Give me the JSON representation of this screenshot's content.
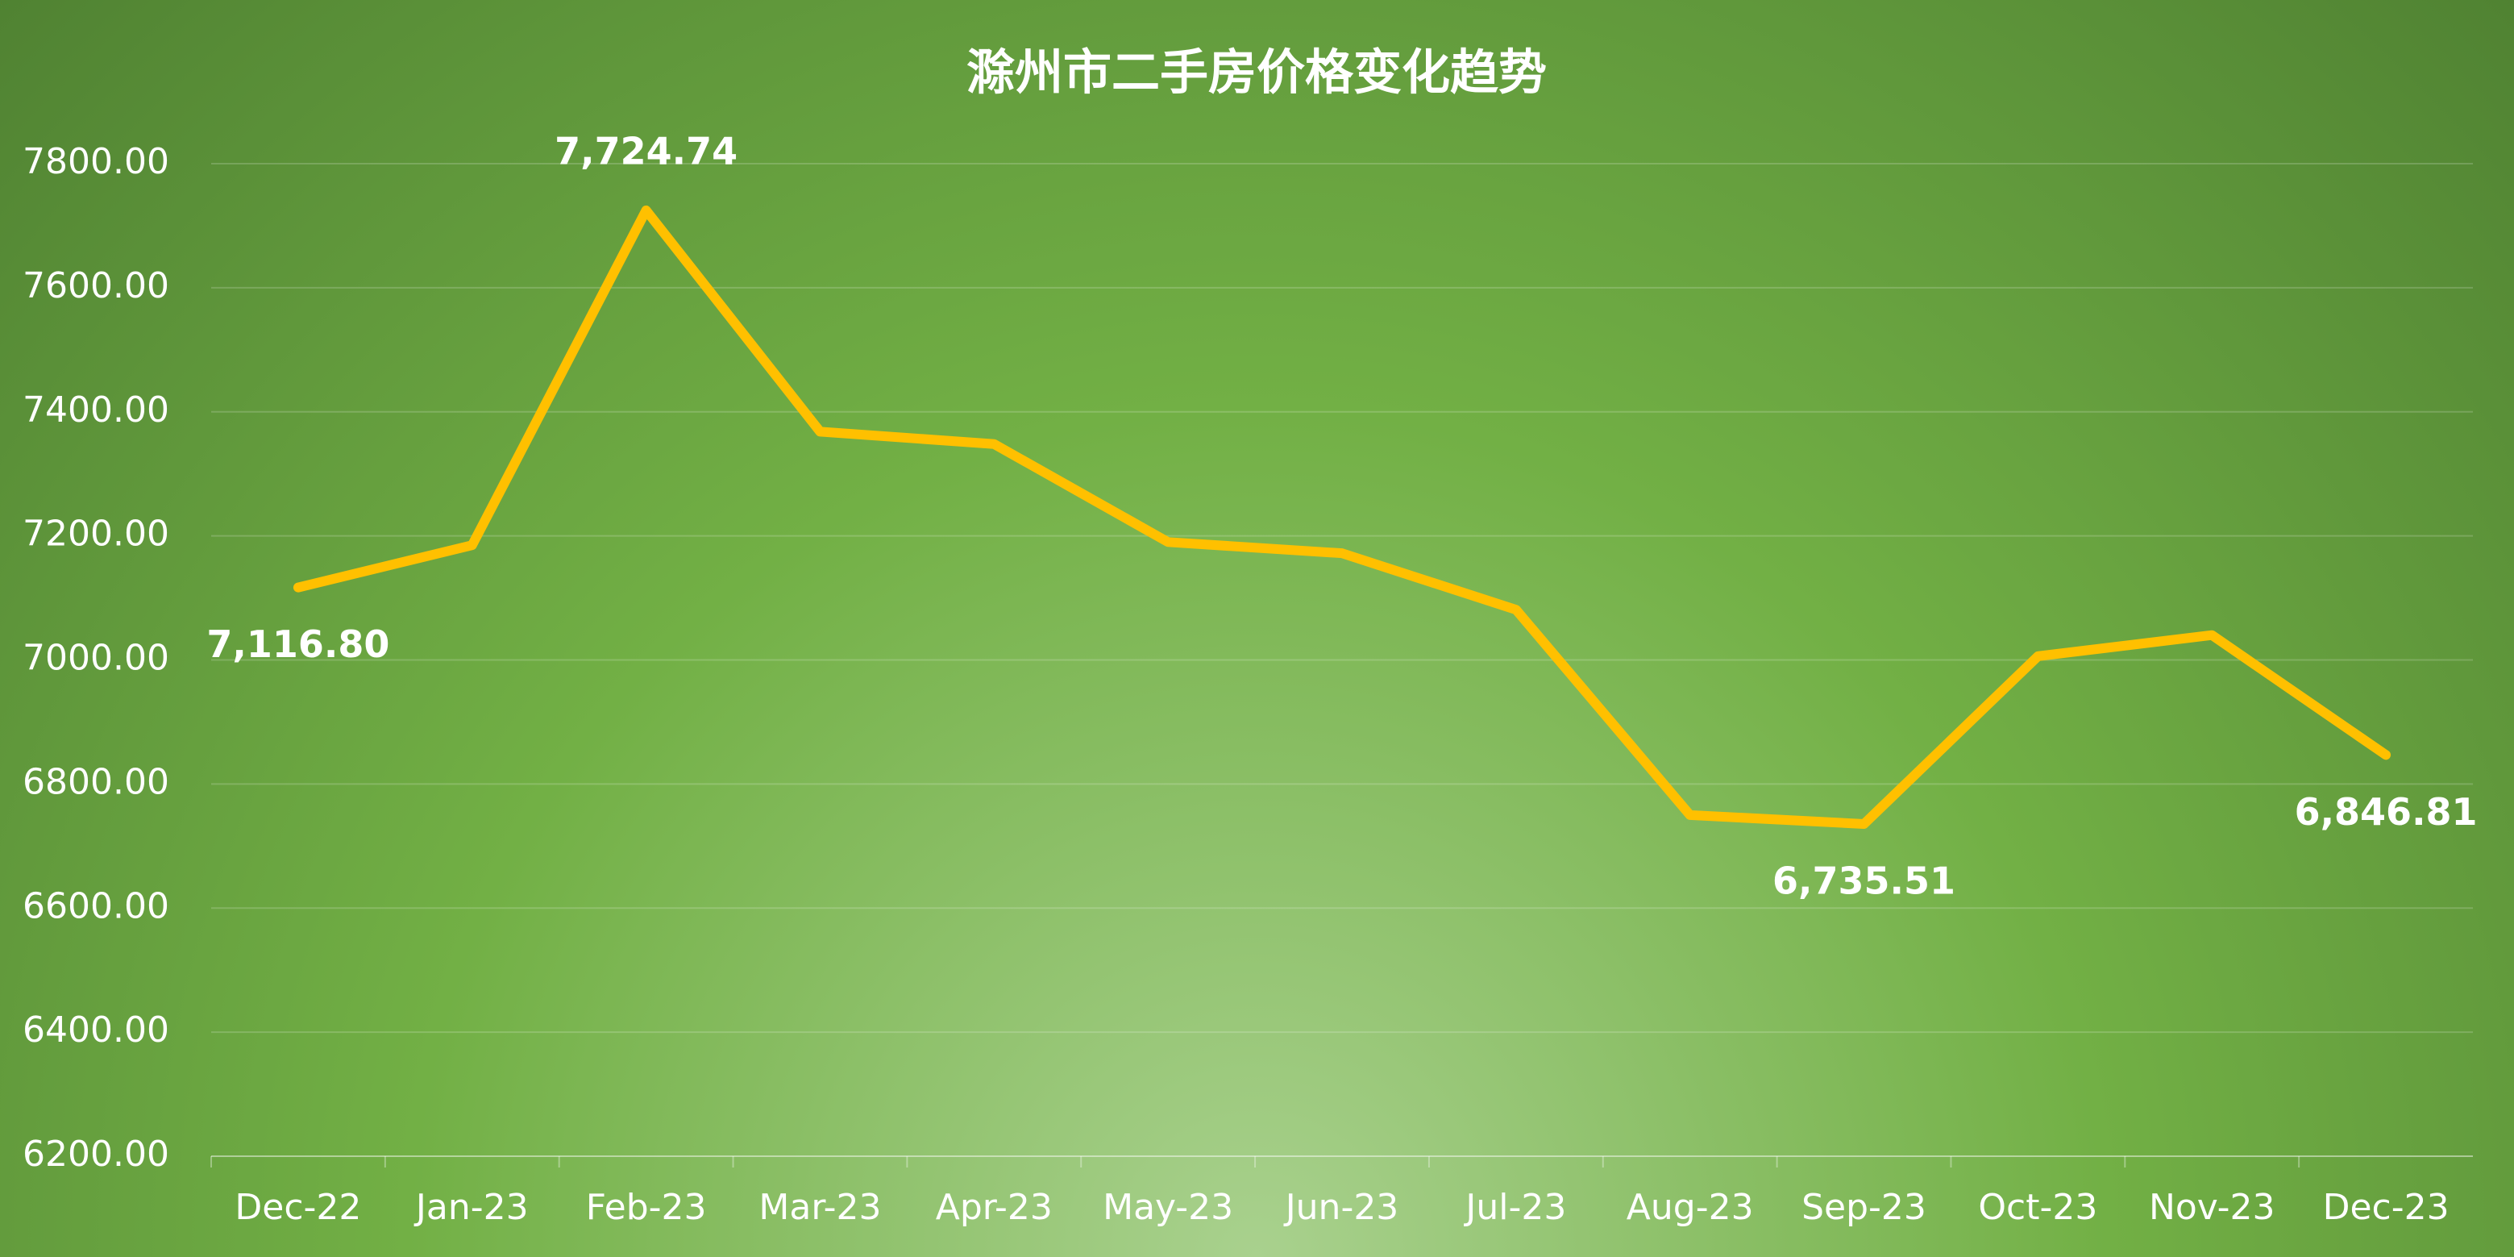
{
  "chart_data": {
    "type": "line",
    "title": "滁州市二手房价格变化趋势",
    "categories": [
      "Dec-22",
      "Jan-23",
      "Feb-23",
      "Mar-23",
      "Apr-23",
      "May-23",
      "Jun-23",
      "Jul-23",
      "Aug-23",
      "Sep-23",
      "Oct-23",
      "Nov-23",
      "Dec-23"
    ],
    "series": [
      {
        "color": "#ffc000",
        "values": [
          7116.8,
          7185,
          7724.74,
          7368,
          7348,
          7190,
          7172,
          7081,
          6750,
          6735.51,
          7006,
          7040,
          6846.81
        ],
        "value_labels": [
          "7,116.80",
          null,
          "7,724.74",
          null,
          null,
          null,
          null,
          null,
          null,
          "6,735.51",
          null,
          null,
          "6,846.81"
        ]
      }
    ],
    "ylim": [
      6200,
      7800
    ],
    "yticks": [
      {
        "value": 6200,
        "label": "6200.00"
      },
      {
        "value": 6400,
        "label": "6400.00"
      },
      {
        "value": 6600,
        "label": "6600.00"
      },
      {
        "value": 6800,
        "label": "6800.00"
      },
      {
        "value": 7000,
        "label": "7000.00"
      },
      {
        "value": 7200,
        "label": "7200.00"
      },
      {
        "value": 7400,
        "label": "7400.00"
      },
      {
        "value": 7600,
        "label": "7600.00"
      },
      {
        "value": 7800,
        "label": "7800.00"
      }
    ],
    "grid": true
  }
}
